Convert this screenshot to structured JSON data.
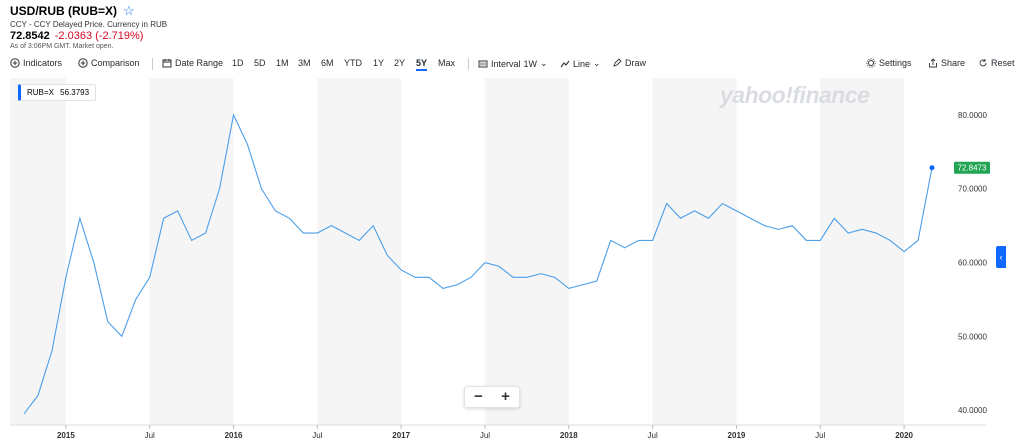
{
  "header": {
    "title": "USD/RUB (RUB=X)",
    "star_icon": "star-icon",
    "subtitle": "CCY - CCY Delayed Price. Currency in RUB",
    "price": "72.8542",
    "change": "-2.0363 (-2.719%)",
    "asof": "As of 3:06PM GMT. Market open.",
    "change_color": "#d60a22"
  },
  "toolbar": {
    "indicators": "Indicators",
    "comparison": "Comparison",
    "date_range": "Date Range",
    "ranges": [
      "1D",
      "5D",
      "1M",
      "3M",
      "6M",
      "YTD",
      "1Y",
      "2Y",
      "5Y",
      "Max"
    ],
    "active_range": "5Y",
    "interval_label": "Interval",
    "interval_value": "1W",
    "line_label": "Line",
    "draw": "Draw",
    "settings": "Settings",
    "share": "Share",
    "reset": "Reset"
  },
  "legend": {
    "symbol": "RUB=X",
    "value": "56.3793"
  },
  "watermark": "yahoo!finance",
  "zoom": {
    "minus": "−",
    "plus": "+"
  },
  "colors": {
    "accent": "#0f69ff",
    "line": "#4a9eea",
    "last_badge": "#21a453",
    "band": "#f5f5f5"
  },
  "chart_data": {
    "type": "line",
    "series": [
      {
        "name": "RUB=X",
        "x": [
          "2014-10",
          "2014-11",
          "2014-12",
          "2015-01",
          "2015-02",
          "2015-03",
          "2015-04",
          "2015-05",
          "2015-06",
          "2015-07",
          "2015-08",
          "2015-09",
          "2015-10",
          "2015-11",
          "2015-12",
          "2016-01",
          "2016-02",
          "2016-03",
          "2016-04",
          "2016-05",
          "2016-06",
          "2016-07",
          "2016-08",
          "2016-09",
          "2016-10",
          "2016-11",
          "2016-12",
          "2017-01",
          "2017-02",
          "2017-03",
          "2017-04",
          "2017-05",
          "2017-06",
          "2017-07",
          "2017-08",
          "2017-09",
          "2017-10",
          "2017-11",
          "2017-12",
          "2018-01",
          "2018-02",
          "2018-03",
          "2018-04",
          "2018-05",
          "2018-06",
          "2018-07",
          "2018-08",
          "2018-09",
          "2018-10",
          "2018-11",
          "2018-12",
          "2019-01",
          "2019-02",
          "2019-03",
          "2019-04",
          "2019-05",
          "2019-06",
          "2019-07",
          "2019-08",
          "2019-09",
          "2019-10",
          "2019-11",
          "2019-12",
          "2020-01",
          "2020-02",
          "2020-03"
        ],
        "values": [
          39.5,
          42,
          48,
          58,
          66,
          60,
          52,
          50,
          55,
          58,
          66,
          67,
          63,
          64,
          70,
          80,
          76,
          70,
          67,
          66,
          64,
          64,
          65,
          64,
          63,
          65,
          61,
          59,
          58,
          58,
          56.5,
          57,
          58,
          60,
          59.5,
          58,
          58,
          58.5,
          58,
          56.5,
          57,
          57.5,
          63,
          62,
          63,
          63,
          68,
          66,
          67,
          66,
          68,
          67,
          66,
          65,
          64.5,
          65,
          63,
          63,
          66,
          64,
          64.5,
          64,
          63,
          61.5,
          63,
          72.85
        ]
      }
    ],
    "x_tick_labels": [
      "2015",
      "Jul",
      "2016",
      "Jul",
      "2017",
      "Jul",
      "2018",
      "Jul",
      "2019",
      "Jul",
      "2020"
    ],
    "y_tick_labels": [
      "40.0000",
      "50.0000",
      "60.0000",
      "70.0000",
      "80.0000"
    ],
    "ylim": [
      38,
      85
    ],
    "last_value": "72.8473",
    "grid": "alternating vertical bands",
    "legend_position": "top-left"
  }
}
